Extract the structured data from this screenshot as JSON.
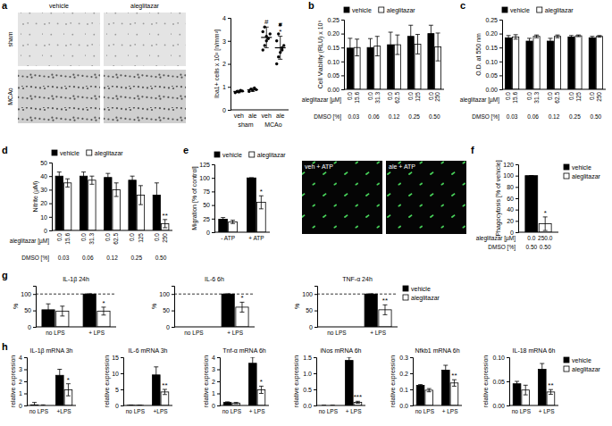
{
  "micrographs": {
    "columns": [
      "vehicle",
      "aleglitazar"
    ],
    "rows": [
      "sham",
      "MCAo"
    ]
  },
  "fluorescence": {
    "labels": [
      "veh + ATP",
      "ale + ATP"
    ]
  },
  "chart_data": [
    {
      "type": "scatter",
      "panel": "a",
      "y_label": "Iba1+ cells x 10² [n/mm²]",
      "color": "#000000",
      "categories": [
        "veh",
        "ale",
        "veh",
        "ale"
      ],
      "groups": [
        "sham",
        "MCAo"
      ],
      "points": [
        [
          0.75,
          0.8,
          0.78,
          0.85,
          0.82
        ],
        [
          0.8,
          0.9,
          0.85,
          0.95,
          0.88
        ],
        [
          2.6,
          2.8,
          3.0,
          3.1,
          3.3,
          3.4,
          3.6,
          3.2
        ],
        [
          2.0,
          2.3,
          2.5,
          2.7,
          2.8,
          3.0,
          3.3,
          3.7,
          2.6
        ]
      ],
      "values": [
        0.8,
        0.87,
        3.15,
        2.7
      ],
      "errors": [
        0.05,
        0.07,
        0.45,
        0.5
      ],
      "annotations": [
        null,
        null,
        [
          "#"
        ],
        [
          "#",
          "*"
        ]
      ],
      "ylim": [
        0,
        4
      ],
      "yticks": [
        0,
        1,
        2,
        3,
        4
      ]
    },
    {
      "type": "bar",
      "panel": "b",
      "y_label": "Cell Viability (RLU) x 10⁶",
      "legend": "top",
      "ylim": [
        0,
        0.25
      ],
      "yticks": [
        {
          "value": 0,
          "label": "0.00"
        },
        0.05,
        {
          "value": 0.1,
          "label": "0.10"
        },
        0.15,
        {
          "value": 0.2,
          "label": "0.20"
        },
        0.25
      ],
      "categories": [
        "0.03",
        "0.06",
        "0.12",
        "0.25",
        "0.50"
      ],
      "x_label": "DMSO [%]",
      "bar_labels": [
        {
          "label": "aleglitazar [µM]",
          "values": [
            "0.0",
            "15.6",
            "0.0",
            "31.3",
            "0.0",
            "62.5",
            "0.0",
            "125",
            "0.0",
            "250"
          ]
        }
      ],
      "series": [
        {
          "name": "vehicle",
          "color": "#000000",
          "values": [
            0.148,
            0.15,
            0.16,
            0.19,
            0.2
          ],
          "errors": [
            0.035,
            0.032,
            0.045,
            0.04,
            0.03
          ]
        },
        {
          "name": "aleglitazar",
          "color": "#ffffff",
          "values": [
            0.15,
            0.155,
            0.16,
            0.162,
            0.152
          ],
          "errors": [
            0.03,
            0.035,
            0.035,
            0.035,
            0.05
          ]
        }
      ]
    },
    {
      "type": "bar",
      "panel": "c",
      "y_label": "O.D. at 550 nm",
      "legend": "top",
      "ylim": [
        0,
        0.25
      ],
      "yticks": [
        {
          "value": 0,
          "label": "0.00"
        },
        0.05,
        {
          "value": 0.1,
          "label": "0.10"
        },
        0.15,
        {
          "value": 0.2,
          "label": "0.20"
        },
        0.25
      ],
      "categories": [
        "0.03",
        "0.06",
        "0.12",
        "0.25",
        "0.50"
      ],
      "x_label": "DMSO [%]",
      "bar_labels": [
        {
          "label": "aleglitazar [µM]",
          "values": [
            "0.0",
            "15.6",
            "0.0",
            "31.3",
            "0.0",
            "62.5",
            "0.0",
            "125",
            "0.0",
            "250"
          ]
        }
      ],
      "series": [
        {
          "name": "vehicle",
          "color": "#000000",
          "values": [
            0.185,
            0.173,
            0.173,
            0.188,
            0.185
          ],
          "errors": [
            0.008,
            0.01,
            0.01,
            0.005,
            0.005
          ]
        },
        {
          "name": "aleglitazar",
          "color": "#ffffff",
          "values": [
            0.188,
            0.19,
            0.19,
            0.192,
            0.19
          ],
          "errors": [
            0.008,
            0.005,
            0.005,
            0.003,
            0.003
          ]
        }
      ]
    },
    {
      "type": "bar",
      "panel": "d",
      "y_label": "Nitrite (µM)",
      "legend": "top",
      "ylim": [
        0,
        50
      ],
      "yticks": [
        0,
        10,
        20,
        30,
        40,
        50
      ],
      "categories": [
        "0.03",
        "0.06",
        "0.12",
        "0.25",
        "0.50"
      ],
      "x_label": "DMSO [%]",
      "bar_labels": [
        {
          "label": "aleglitazar [µM]",
          "values": [
            "0.0",
            "15.6",
            "0.0",
            "31.3",
            "0.0",
            "62.5",
            "0.0",
            "125",
            "0.0",
            "250"
          ]
        }
      ],
      "series": [
        {
          "name": "vehicle",
          "color": "#000000",
          "values": [
            40,
            40,
            39,
            37,
            26
          ],
          "errors": [
            3,
            3,
            3,
            3,
            9
          ]
        },
        {
          "name": "aleglitazar",
          "color": "#ffffff",
          "values": [
            35,
            37,
            30,
            26,
            5
          ],
          "errors": [
            3,
            3,
            5,
            7,
            3
          ],
          "annotations": [
            null,
            null,
            null,
            null,
            "**"
          ]
        }
      ]
    },
    {
      "type": "bar",
      "panel": "e",
      "y_label": "Migration [% of control]",
      "legend": "top",
      "ylim": [
        0,
        125
      ],
      "yticks": [
        0,
        25,
        50,
        75,
        100,
        125
      ],
      "categories": [
        "- ATP",
        "+ ATP"
      ],
      "series": [
        {
          "name": "vehicle",
          "color": "#000000",
          "values": [
            24,
            100
          ],
          "errors": [
            3,
            0
          ]
        },
        {
          "name": "aleglitazar",
          "color": "#ffffff",
          "values": [
            19,
            55
          ],
          "errors": [
            3,
            12
          ],
          "annotations": [
            null,
            "*"
          ]
        }
      ]
    },
    {
      "type": "bar",
      "panel": "f",
      "y_label": "Phagocytosis [% of vehicle]",
      "legend": "right",
      "ylim": [
        0,
        120
      ],
      "yticks": [
        0,
        20,
        40,
        60,
        80,
        100,
        120
      ],
      "categories": [
        null
      ],
      "bar_labels": [
        {
          "label": "aleglitazar [µM]",
          "values": [
            "0.0",
            "250.0"
          ]
        },
        {
          "label": "DMSO [%]",
          "values": [
            "0.50",
            "0.50"
          ]
        }
      ],
      "series": [
        {
          "name": "vehicle",
          "color": "#000000",
          "values": [
            100
          ],
          "errors": [
            0
          ]
        },
        {
          "name": "aleglitazar",
          "color": "#ffffff",
          "values": [
            15
          ],
          "errors": [
            12
          ],
          "annotations": [
            "*"
          ]
        }
      ]
    },
    {
      "type": "bar",
      "panel": "g",
      "title": "IL-1β 24h",
      "y_label": "%",
      "hline": 100,
      "ylim": [
        0,
        125
      ],
      "yticks": [
        0,
        50,
        100
      ],
      "categories": [
        "no LPS",
        "+ LPS"
      ],
      "series": [
        {
          "name": "vehicle",
          "color": "#000000",
          "values": [
            52,
            100
          ],
          "errors": [
            18,
            0
          ]
        },
        {
          "name": "aleglitazar",
          "color": "#ffffff",
          "values": [
            48,
            48
          ],
          "errors": [
            15,
            12
          ],
          "annotations": [
            null,
            "*"
          ]
        }
      ]
    },
    {
      "type": "bar",
      "title": "IL-6 6h",
      "y_label": "%",
      "hline": 100,
      "ylim": [
        0,
        125
      ],
      "yticks": [
        0,
        50,
        100
      ],
      "categories": [
        "no LPS",
        "+ LPS"
      ],
      "series": [
        {
          "name": "vehicle",
          "color": "#000000",
          "values": [
            null,
            100
          ],
          "errors": [
            null,
            0
          ]
        },
        {
          "name": "aleglitazar",
          "color": "#ffffff",
          "values": [
            null,
            60
          ],
          "errors": [
            null,
            15
          ],
          "annotations": [
            null,
            "*"
          ]
        }
      ]
    },
    {
      "type": "bar",
      "title": "TNF-α 24h",
      "y_label": "%",
      "hline": 100,
      "legend": "right",
      "ylim": [
        0,
        125
      ],
      "yticks": [
        0,
        50,
        100
      ],
      "categories": [
        "no LPS",
        "+ LPS"
      ],
      "series": [
        {
          "name": "vehicle",
          "color": "#000000",
          "values": [
            null,
            100
          ],
          "errors": [
            null,
            0
          ]
        },
        {
          "name": "aleglitazar",
          "color": "#ffffff",
          "values": [
            null,
            52
          ],
          "errors": [
            null,
            15
          ],
          "annotations": [
            null,
            "**"
          ]
        }
      ]
    },
    {
      "type": "bar",
      "panel": "h",
      "title": "IL-1β mRNA 3h",
      "y_label": "relative expression",
      "ylim": [
        0,
        4
      ],
      "yticks": [
        0,
        1,
        2,
        3,
        4
      ],
      "categories": [
        "no LPS",
        "+LPS"
      ],
      "series": [
        {
          "name": "vehicle",
          "color": "#000000",
          "values": [
            0.05,
            2.5
          ],
          "errors": [
            0.2,
            0.5
          ]
        },
        {
          "name": "aleglitazar",
          "color": "#ffffff",
          "values": [
            0.0,
            1.3
          ],
          "errors": [
            0.05,
            0.5
          ],
          "annotations": [
            null,
            "*"
          ]
        }
      ]
    },
    {
      "type": "bar",
      "title": "IL-6 mRNA 3h",
      "y_label": "relative expression",
      "ylim": [
        0,
        15
      ],
      "yticks": [
        0,
        5,
        10,
        15
      ],
      "categories": [
        "no LPS",
        "+LPS"
      ],
      "series": [
        {
          "name": "vehicle",
          "color": "#000000",
          "values": [
            0.05,
            9.5
          ],
          "errors": [
            0.1,
            2.5
          ]
        },
        {
          "name": "aleglitazar",
          "color": "#ffffff",
          "values": [
            0.03,
            4.2
          ],
          "errors": [
            0.05,
            0.8
          ],
          "annotations": [
            null,
            "**"
          ]
        }
      ]
    },
    {
      "type": "bar",
      "title": "Tnf-α mRNA 6h",
      "y_label": "relative expression",
      "ylim": [
        0,
        4
      ],
      "yticks": [
        0,
        1,
        2,
        3,
        4
      ],
      "categories": [
        "no LPS",
        "+ LPS"
      ],
      "series": [
        {
          "name": "vehicle",
          "color": "#000000",
          "values": [
            0.25,
            3.5
          ],
          "errors": [
            0.05,
            0.5
          ]
        },
        {
          "name": "aleglitazar",
          "color": "#ffffff",
          "values": [
            0.2,
            1.3
          ],
          "errors": [
            0.05,
            0.3
          ],
          "annotations": [
            null,
            "*"
          ]
        }
      ]
    },
    {
      "type": "bar",
      "title": "iNos mRNA 6h",
      "y_label": "relative expression",
      "ylim": [
        0,
        1.5
      ],
      "yticks": [
        {
          "value": 0,
          "label": "0.0"
        },
        0.5,
        {
          "value": 1,
          "label": "1.0"
        },
        1.5
      ],
      "categories": [
        "no LPS",
        "+ LPS"
      ],
      "series": [
        {
          "name": "vehicle",
          "color": "#000000",
          "values": [
            0.0,
            1.4
          ],
          "errors": [
            0.005,
            0.1
          ]
        },
        {
          "name": "aleglitazar",
          "color": "#ffffff",
          "values": [
            0.0,
            0.1
          ],
          "errors": [
            0.005,
            0.03
          ],
          "annotations": [
            null,
            "***"
          ]
        }
      ]
    },
    {
      "type": "bar",
      "title": "Nfkb1 mRNA 6h",
      "y_label": "relative expression",
      "ylim": [
        0,
        0.3
      ],
      "yticks": [
        {
          "value": 0,
          "label": "0.0"
        },
        0.1,
        0.2,
        0.3
      ],
      "categories": [
        "no LPS",
        "+ LPS"
      ],
      "series": [
        {
          "name": "vehicle",
          "color": "#000000",
          "values": [
            0.125,
            0.22
          ],
          "errors": [
            0.005,
            0.03
          ]
        },
        {
          "name": "aleglitazar",
          "color": "#ffffff",
          "values": [
            0.095,
            0.14
          ],
          "errors": [
            0.01,
            0.02
          ],
          "annotations": [
            null,
            "**"
          ]
        }
      ]
    },
    {
      "type": "bar",
      "title": "IL-18 mRNA 6h",
      "y_label": "relative expression",
      "legend": "right",
      "ylim": [
        0,
        0.1
      ],
      "yticks": [
        {
          "value": 0,
          "label": "0.00"
        },
        0.05,
        {
          "value": 0.1,
          "label": "0.10"
        }
      ],
      "categories": [
        "no LPS",
        "+ LPS"
      ],
      "series": [
        {
          "name": "vehicle",
          "color": "#000000",
          "values": [
            0.045,
            0.075
          ],
          "errors": [
            0.005,
            0.012
          ]
        },
        {
          "name": "aleglitazar",
          "color": "#ffffff",
          "values": [
            0.032,
            0.028
          ],
          "errors": [
            0.01,
            0.005
          ],
          "annotations": [
            null,
            "**"
          ]
        }
      ]
    }
  ]
}
